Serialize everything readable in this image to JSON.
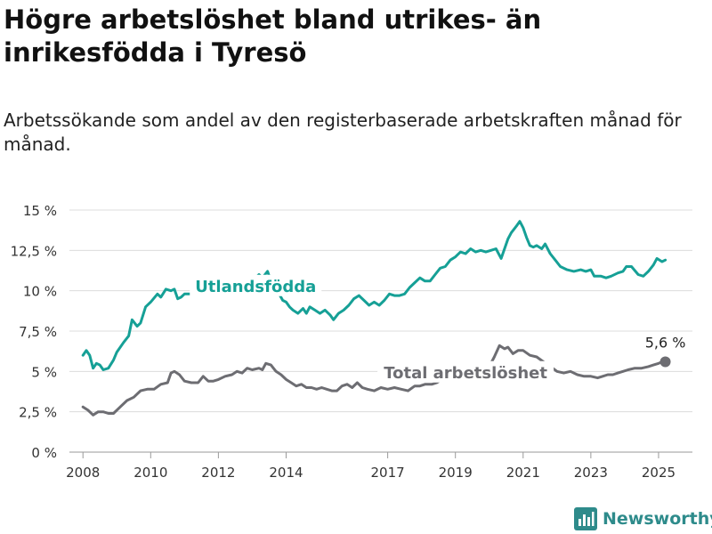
{
  "header": {
    "title": "Högre arbetslöshet bland utrikes- än inrikesfödda i Tyresö",
    "subtitle": "Arbetssökande som andel av den registerbaserade arbetskraften månad för månad."
  },
  "brand": {
    "name": "Newsworthy",
    "icon": "bar-chart-logo-icon",
    "color": "#2e8b8b"
  },
  "chart_data": {
    "type": "line",
    "title": "Högre arbetslöshet bland utrikes- än inrikesfödda i Tyresö",
    "subtitle": "Arbetssökande som andel av den registerbaserade arbetskraften månad för månad.",
    "xlabel": "",
    "ylabel": "",
    "xlim": [
      2007.6,
      2026.0
    ],
    "ylim": [
      0,
      15
    ],
    "grid": true,
    "y_ticks": [
      {
        "value": 0,
        "label": "0 %"
      },
      {
        "value": 2.5,
        "label": "2,5 %"
      },
      {
        "value": 5,
        "label": "5 %"
      },
      {
        "value": 7.5,
        "label": "7,5 %"
      },
      {
        "value": 10,
        "label": "10 %"
      },
      {
        "value": 12.5,
        "label": "12,5 %"
      },
      {
        "value": 15,
        "label": "15 %"
      }
    ],
    "x_ticks": [
      {
        "value": 2008,
        "label": "2008"
      },
      {
        "value": 2010,
        "label": "2010"
      },
      {
        "value": 2012,
        "label": "2012"
      },
      {
        "value": 2014,
        "label": "2014"
      },
      {
        "value": 2017,
        "label": "2017"
      },
      {
        "value": 2019,
        "label": "2019"
      },
      {
        "value": 2021,
        "label": "2021"
      },
      {
        "value": 2023,
        "label": "2023"
      },
      {
        "value": 2025,
        "label": "2025"
      }
    ],
    "series": [
      {
        "name": "Utlandsfödda",
        "color": "#16a096",
        "points": [
          [
            2008.0,
            6.0
          ],
          [
            2008.1,
            6.3
          ],
          [
            2008.2,
            6.0
          ],
          [
            2008.3,
            5.2
          ],
          [
            2008.4,
            5.5
          ],
          [
            2008.5,
            5.4
          ],
          [
            2008.6,
            5.1
          ],
          [
            2008.75,
            5.2
          ],
          [
            2008.9,
            5.7
          ],
          [
            2009.0,
            6.2
          ],
          [
            2009.2,
            6.8
          ],
          [
            2009.35,
            7.2
          ],
          [
            2009.45,
            8.2
          ],
          [
            2009.6,
            7.8
          ],
          [
            2009.7,
            8.0
          ],
          [
            2009.85,
            9.0
          ],
          [
            2010.0,
            9.3
          ],
          [
            2010.2,
            9.8
          ],
          [
            2010.3,
            9.6
          ],
          [
            2010.45,
            10.1
          ],
          [
            2010.6,
            10.0
          ],
          [
            2010.7,
            10.1
          ],
          [
            2010.8,
            9.5
          ],
          [
            2010.9,
            9.6
          ],
          [
            2011.0,
            9.8
          ],
          [
            2011.2,
            9.8
          ],
          [
            2011.3,
            9.9
          ],
          [
            2011.4,
            10.8
          ],
          [
            2011.5,
            10.5
          ],
          [
            2011.6,
            9.9
          ],
          [
            2011.7,
            9.8
          ],
          [
            2011.85,
            10.7
          ],
          [
            2011.9,
            10.8
          ],
          [
            2013.1,
            10.8
          ],
          [
            2013.2,
            11.0
          ],
          [
            2013.3,
            10.8
          ],
          [
            2013.45,
            11.2
          ],
          [
            2013.5,
            10.9
          ],
          [
            2013.9,
            9.4
          ],
          [
            2014.0,
            9.3
          ],
          [
            2014.1,
            9.0
          ],
          [
            2014.2,
            8.8
          ],
          [
            2014.35,
            8.6
          ],
          [
            2014.5,
            8.9
          ],
          [
            2014.6,
            8.6
          ],
          [
            2014.7,
            9.0
          ],
          [
            2014.85,
            8.8
          ],
          [
            2015.0,
            8.6
          ],
          [
            2015.15,
            8.8
          ],
          [
            2015.3,
            8.5
          ],
          [
            2015.4,
            8.2
          ],
          [
            2015.55,
            8.6
          ],
          [
            2015.7,
            8.8
          ],
          [
            2015.85,
            9.1
          ],
          [
            2016.0,
            9.5
          ],
          [
            2016.15,
            9.7
          ],
          [
            2016.3,
            9.4
          ],
          [
            2016.45,
            9.1
          ],
          [
            2016.6,
            9.3
          ],
          [
            2016.75,
            9.1
          ],
          [
            2016.9,
            9.4
          ],
          [
            2017.05,
            9.8
          ],
          [
            2017.2,
            9.7
          ],
          [
            2017.35,
            9.7
          ],
          [
            2017.5,
            9.8
          ],
          [
            2017.65,
            10.2
          ],
          [
            2017.8,
            10.5
          ],
          [
            2017.95,
            10.8
          ],
          [
            2018.1,
            10.6
          ],
          [
            2018.25,
            10.6
          ],
          [
            2018.4,
            11.0
          ],
          [
            2018.55,
            11.4
          ],
          [
            2018.7,
            11.5
          ],
          [
            2018.85,
            11.9
          ],
          [
            2019.0,
            12.1
          ],
          [
            2019.15,
            12.4
          ],
          [
            2019.3,
            12.3
          ],
          [
            2019.45,
            12.6
          ],
          [
            2019.6,
            12.4
          ],
          [
            2019.75,
            12.5
          ],
          [
            2019.9,
            12.4
          ],
          [
            2020.05,
            12.5
          ],
          [
            2020.2,
            12.6
          ],
          [
            2020.35,
            12.0
          ],
          [
            2020.45,
            12.6
          ],
          [
            2020.55,
            13.2
          ],
          [
            2020.65,
            13.6
          ],
          [
            2020.8,
            14.0
          ],
          [
            2020.9,
            14.3
          ],
          [
            2021.0,
            13.9
          ],
          [
            2021.1,
            13.3
          ],
          [
            2021.2,
            12.8
          ],
          [
            2021.3,
            12.7
          ],
          [
            2021.4,
            12.8
          ],
          [
            2021.55,
            12.6
          ],
          [
            2021.65,
            12.9
          ],
          [
            2021.8,
            12.3
          ],
          [
            2021.95,
            11.9
          ],
          [
            2022.1,
            11.5
          ],
          [
            2022.3,
            11.3
          ],
          [
            2022.5,
            11.2
          ],
          [
            2022.7,
            11.3
          ],
          [
            2022.85,
            11.2
          ],
          [
            2023.0,
            11.3
          ],
          [
            2023.1,
            10.9
          ],
          [
            2023.3,
            10.9
          ],
          [
            2023.45,
            10.8
          ],
          [
            2023.6,
            10.9
          ],
          [
            2023.8,
            11.1
          ],
          [
            2023.95,
            11.2
          ],
          [
            2024.05,
            11.5
          ],
          [
            2024.2,
            11.5
          ],
          [
            2024.4,
            11.0
          ],
          [
            2024.55,
            10.9
          ],
          [
            2024.7,
            11.2
          ],
          [
            2024.85,
            11.6
          ],
          [
            2024.95,
            12.0
          ],
          [
            2025.1,
            11.8
          ],
          [
            2025.2,
            11.9
          ]
        ]
      },
      {
        "name": "Total arbetslöshet",
        "color": "#6d6d72",
        "points": [
          [
            2008.0,
            2.8
          ],
          [
            2008.15,
            2.6
          ],
          [
            2008.3,
            2.3
          ],
          [
            2008.45,
            2.5
          ],
          [
            2008.6,
            2.5
          ],
          [
            2008.75,
            2.4
          ],
          [
            2008.9,
            2.4
          ],
          [
            2009.1,
            2.8
          ],
          [
            2009.3,
            3.2
          ],
          [
            2009.5,
            3.4
          ],
          [
            2009.7,
            3.8
          ],
          [
            2009.9,
            3.9
          ],
          [
            2010.1,
            3.9
          ],
          [
            2010.3,
            4.2
          ],
          [
            2010.5,
            4.3
          ],
          [
            2010.6,
            4.9
          ],
          [
            2010.7,
            5.0
          ],
          [
            2010.85,
            4.8
          ],
          [
            2011.0,
            4.4
          ],
          [
            2011.2,
            4.3
          ],
          [
            2011.4,
            4.3
          ],
          [
            2011.55,
            4.7
          ],
          [
            2011.7,
            4.4
          ],
          [
            2011.85,
            4.4
          ],
          [
            2012.0,
            4.5
          ],
          [
            2012.2,
            4.7
          ],
          [
            2012.4,
            4.8
          ],
          [
            2012.55,
            5.0
          ],
          [
            2012.7,
            4.9
          ],
          [
            2012.85,
            5.2
          ],
          [
            2013.0,
            5.1
          ],
          [
            2013.2,
            5.2
          ],
          [
            2013.3,
            5.1
          ],
          [
            2013.4,
            5.5
          ],
          [
            2013.55,
            5.4
          ],
          [
            2013.7,
            5.0
          ],
          [
            2013.85,
            4.8
          ],
          [
            2014.0,
            4.5
          ],
          [
            2014.15,
            4.3
          ],
          [
            2014.3,
            4.1
          ],
          [
            2014.45,
            4.2
          ],
          [
            2014.6,
            4.0
          ],
          [
            2014.75,
            4.0
          ],
          [
            2014.9,
            3.9
          ],
          [
            2015.05,
            4.0
          ],
          [
            2015.2,
            3.9
          ],
          [
            2015.35,
            3.8
          ],
          [
            2015.5,
            3.8
          ],
          [
            2015.65,
            4.1
          ],
          [
            2015.8,
            4.2
          ],
          [
            2015.95,
            4.0
          ],
          [
            2016.1,
            4.3
          ],
          [
            2016.25,
            4.0
          ],
          [
            2016.4,
            3.9
          ],
          [
            2016.6,
            3.8
          ],
          [
            2016.8,
            4.0
          ],
          [
            2017.0,
            3.9
          ],
          [
            2017.2,
            4.0
          ],
          [
            2017.4,
            3.9
          ],
          [
            2017.6,
            3.8
          ],
          [
            2017.8,
            4.1
          ],
          [
            2017.95,
            4.1
          ],
          [
            2018.1,
            4.2
          ],
          [
            2018.3,
            4.2
          ],
          [
            2018.45,
            4.3
          ],
          [
            2018.6,
            4.5
          ],
          [
            2020.0,
            5.3
          ],
          [
            2020.15,
            5.9
          ],
          [
            2020.3,
            6.6
          ],
          [
            2020.45,
            6.4
          ],
          [
            2020.55,
            6.5
          ],
          [
            2020.7,
            6.1
          ],
          [
            2020.85,
            6.3
          ],
          [
            2021.0,
            6.3
          ],
          [
            2021.2,
            6.0
          ],
          [
            2021.4,
            5.9
          ],
          [
            2021.6,
            5.6
          ],
          [
            2021.75,
            5.4
          ],
          [
            2022.0,
            5.0
          ],
          [
            2022.2,
            4.9
          ],
          [
            2022.4,
            5.0
          ],
          [
            2022.6,
            4.8
          ],
          [
            2022.8,
            4.7
          ],
          [
            2023.0,
            4.7
          ],
          [
            2023.2,
            4.6
          ],
          [
            2023.35,
            4.7
          ],
          [
            2023.5,
            4.8
          ],
          [
            2023.65,
            4.8
          ],
          [
            2023.8,
            4.9
          ],
          [
            2023.95,
            5.0
          ],
          [
            2024.1,
            5.1
          ],
          [
            2024.3,
            5.2
          ],
          [
            2024.5,
            5.2
          ],
          [
            2024.7,
            5.3
          ],
          [
            2024.85,
            5.4
          ],
          [
            2025.0,
            5.5
          ],
          [
            2025.1,
            5.6
          ],
          [
            2025.2,
            5.6
          ]
        ]
      }
    ],
    "annotations": [
      {
        "text": "Utlandsfödda",
        "series": "Utlandsfödda",
        "x": 2013.1,
        "y": 10.05,
        "color": "#16a096"
      },
      {
        "text": "Total arbetslöshet",
        "series": "Total arbetslöshet",
        "x": 2019.3,
        "y": 4.7,
        "color": "#6d6d72"
      },
      {
        "text": "5,6 %",
        "series": "Total arbetslöshet",
        "x": 2025.2,
        "y": 5.6,
        "color": "#222222",
        "marker": true
      }
    ]
  }
}
